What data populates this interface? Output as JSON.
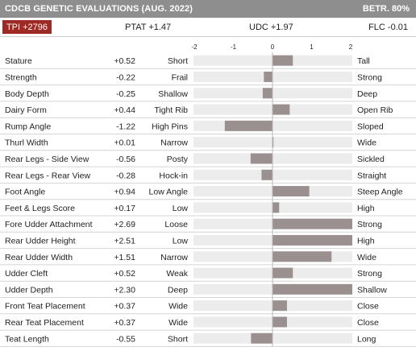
{
  "header": {
    "title": "CDCB GENETIC EVALUATIONS (AUG. 2022)",
    "reliability": "BETR. 80%"
  },
  "summary": {
    "tpi": "TPI +2796",
    "ptat": "PTAT +1.47",
    "udc": "UDC +1.97",
    "flc": "FLC -0.01"
  },
  "colors": {
    "header_bg": "#8e8e8e",
    "tpi_badge": "#9e2a25",
    "bar": "#9a9090",
    "track": "#ececec",
    "row_divider": "#d4d4d4"
  },
  "chart_data": {
    "type": "bar",
    "orientation": "horizontal",
    "title": "",
    "xlim": [
      -2,
      2
    ],
    "ticks": [
      "-2",
      "-1",
      "0",
      "1",
      "2"
    ],
    "grid": false,
    "rows": [
      {
        "trait": "Stature",
        "value_label": "+0.52",
        "value": 0.52,
        "low": "Short",
        "high": "Tall"
      },
      {
        "trait": "Strength",
        "value_label": "-0.22",
        "value": -0.22,
        "low": "Frail",
        "high": "Strong"
      },
      {
        "trait": "Body Depth",
        "value_label": "-0.25",
        "value": -0.25,
        "low": "Shallow",
        "high": "Deep"
      },
      {
        "trait": "Dairy Form",
        "value_label": "+0.44",
        "value": 0.44,
        "low": "Tight Rib",
        "high": "Open Rib"
      },
      {
        "trait": "Rump Angle",
        "value_label": "-1.22",
        "value": -1.22,
        "low": "High Pins",
        "high": "Sloped"
      },
      {
        "trait": "Thurl Width",
        "value_label": "+0.01",
        "value": 0.01,
        "low": "Narrow",
        "high": "Wide"
      },
      {
        "trait": "Rear Legs - Side View",
        "value_label": "-0.56",
        "value": -0.56,
        "low": "Posty",
        "high": "Sickled"
      },
      {
        "trait": "Rear Legs - Rear View",
        "value_label": "-0.28",
        "value": -0.28,
        "low": "Hock-in",
        "high": "Straight"
      },
      {
        "trait": "Foot Angle",
        "value_label": "+0.94",
        "value": 0.94,
        "low": "Low Angle",
        "high": "Steep Angle"
      },
      {
        "trait": "Feet & Legs Score",
        "value_label": "+0.17",
        "value": 0.17,
        "low": "Low",
        "high": "High"
      },
      {
        "trait": "Fore Udder Attachment",
        "value_label": "+2.69",
        "value": 2.69,
        "low": "Loose",
        "high": "Strong"
      },
      {
        "trait": "Rear Udder Height",
        "value_label": "+2.51",
        "value": 2.51,
        "low": "Low",
        "high": "High"
      },
      {
        "trait": "Rear Udder Width",
        "value_label": "+1.51",
        "value": 1.51,
        "low": "Narrow",
        "high": "Wide"
      },
      {
        "trait": "Udder Cleft",
        "value_label": "+0.52",
        "value": 0.52,
        "low": "Weak",
        "high": "Strong"
      },
      {
        "trait": "Udder Depth",
        "value_label": "+2.30",
        "value": 2.3,
        "low": "Deep",
        "high": "Shallow"
      },
      {
        "trait": "Front Teat Placement",
        "value_label": "+0.37",
        "value": 0.37,
        "low": "Wide",
        "high": "Close"
      },
      {
        "trait": "Rear Teat Placement",
        "value_label": "+0.37",
        "value": 0.37,
        "low": "Wide",
        "high": "Close"
      },
      {
        "trait": "Teat Length",
        "value_label": "-0.55",
        "value": -0.55,
        "low": "Short",
        "high": "Long"
      }
    ]
  }
}
